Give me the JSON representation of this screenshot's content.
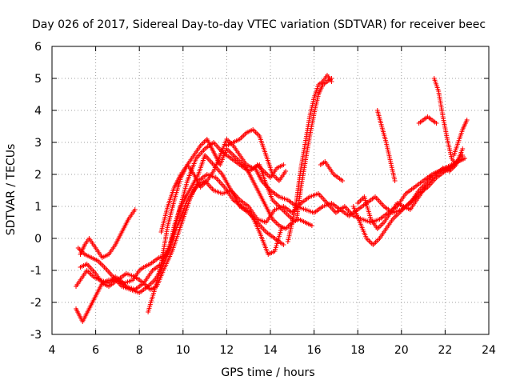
{
  "chart_data": {
    "type": "scatter",
    "title": "Day 026 of 2017, Sidereal Day-to-day VTEC variation (SDTVAR) for receiver beec",
    "xlabel": "GPS time / hours",
    "ylabel": "SDTVAR / TECUs",
    "xlim": [
      4,
      24
    ],
    "ylim": [
      -3,
      6
    ],
    "x_ticks": [
      4,
      6,
      8,
      10,
      12,
      14,
      16,
      18,
      20,
      22,
      24
    ],
    "y_ticks": [
      -3,
      -2,
      -1,
      0,
      1,
      2,
      3,
      4,
      5,
      6
    ],
    "grid": true,
    "marker": "plus",
    "color": "#ff0000",
    "series": [
      {
        "x": [
          5.1,
          5.4,
          5.6,
          5.9,
          6.2,
          6.6,
          6.9,
          7.3,
          7.7,
          8.0,
          8.2,
          8.5,
          8.9,
          9.3,
          9.6,
          9.9,
          10.3,
          10.7,
          11.0,
          11.4,
          11.8,
          12.2,
          12.6,
          13.0,
          13.4,
          13.8,
          14.2,
          14.6,
          15.0,
          15.4,
          15.8,
          16.2,
          16.6,
          17.0,
          17.4,
          17.8,
          18.2,
          18.6,
          19.0,
          19.4,
          19.8,
          20.2,
          20.6,
          21.0,
          21.4,
          21.8,
          22.2,
          22.6,
          22.9
        ],
        "y": [
          -1.5,
          -1.2,
          -1.0,
          -1.2,
          -1.3,
          -1.4,
          -1.2,
          -1.4,
          -1.3,
          -1.0,
          -0.9,
          -0.8,
          -0.6,
          -0.5,
          0.4,
          1.0,
          1.5,
          2.0,
          2.6,
          2.3,
          2.0,
          1.5,
          1.2,
          1.0,
          0.6,
          0.5,
          0.9,
          1.0,
          0.8,
          1.1,
          1.3,
          1.4,
          1.1,
          0.8,
          1.0,
          0.7,
          0.6,
          0.5,
          0.6,
          0.8,
          1.0,
          1.4,
          1.6,
          1.8,
          2.0,
          2.1,
          2.2,
          2.4,
          2.5
        ]
      },
      {
        "x": [
          5.2,
          5.5,
          5.8,
          6.1,
          6.4,
          6.8,
          7.2,
          7.6,
          8.0,
          8.4,
          8.7,
          9.0,
          9.4,
          9.8,
          10.2,
          10.6,
          11.0,
          11.4,
          11.8,
          12.2,
          12.6,
          13.0,
          13.3,
          13.6,
          14.0,
          14.4,
          14.8,
          15.2,
          15.6,
          16.0,
          16.4,
          16.8,
          17.2,
          17.6,
          18.0,
          18.4,
          18.8,
          19.2,
          19.6,
          20.0,
          20.4,
          20.8,
          21.2,
          21.6,
          22.0,
          22.4,
          22.8
        ],
        "y": [
          -0.3,
          -0.5,
          -0.6,
          -0.7,
          -0.9,
          -1.2,
          -1.5,
          -1.6,
          -1.7,
          -1.5,
          -1.3,
          -1.0,
          -0.3,
          0.8,
          1.8,
          2.5,
          2.8,
          3.0,
          2.7,
          2.5,
          2.3,
          2.1,
          2.2,
          1.8,
          1.5,
          1.3,
          1.2,
          1.0,
          0.9,
          0.8,
          1.0,
          1.1,
          0.9,
          0.7,
          0.9,
          1.1,
          1.3,
          1.0,
          0.8,
          0.9,
          1.1,
          1.4,
          1.6,
          1.9,
          2.1,
          2.3,
          2.6
        ]
      },
      {
        "x": [
          5.1,
          5.4,
          5.7,
          6.0,
          6.3,
          6.6,
          7.0,
          7.4,
          7.8,
          8.2,
          8.6,
          9.0,
          9.4,
          9.8,
          10.2,
          10.6,
          11.0,
          11.4,
          11.8,
          12.2,
          12.6,
          13.0,
          13.4,
          13.8,
          14.2,
          14.6
        ],
        "y": [
          -2.2,
          -2.6,
          -2.2,
          -1.8,
          -1.4,
          -1.3,
          -1.3,
          -1.5,
          -1.6,
          -1.4,
          -1.0,
          -0.8,
          -0.2,
          0.5,
          1.2,
          1.6,
          1.8,
          1.5,
          1.4,
          1.5,
          1.0,
          0.8,
          0.5,
          0.2,
          0.0,
          -0.2
        ]
      },
      {
        "x": [
          5.3,
          5.6,
          6.0,
          6.3,
          6.6,
          7.0,
          7.4,
          7.8,
          8.2,
          8.5,
          8.8,
          9.1,
          9.5,
          9.9,
          10.3,
          10.7,
          11.1,
          11.5,
          11.9,
          12.3,
          12.7,
          13.1,
          13.5,
          13.9,
          14.2,
          14.5
        ],
        "y": [
          -0.9,
          -0.8,
          -1.1,
          -1.4,
          -1.5,
          -1.3,
          -1.1,
          -1.2,
          -1.4,
          -1.6,
          -1.5,
          -1.0,
          -0.4,
          0.4,
          1.2,
          1.8,
          2.0,
          1.9,
          1.6,
          1.2,
          1.0,
          0.8,
          0.2,
          -0.5,
          -0.4,
          0.3
        ]
      },
      {
        "x": [
          5.3,
          5.5,
          5.7,
          6.0,
          6.3,
          6.6,
          6.9,
          7.2,
          7.5,
          7.8
        ],
        "y": [
          -0.5,
          -0.2,
          0.0,
          -0.3,
          -0.6,
          -0.5,
          -0.2,
          0.2,
          0.6,
          0.9
        ]
      },
      {
        "x": [
          8.4,
          8.7,
          9.0,
          9.3,
          9.6,
          9.9,
          10.2,
          10.5,
          10.8,
          11.1,
          11.4,
          11.7,
          12.0,
          12.3,
          12.6,
          12.9,
          13.2,
          13.5,
          13.8,
          14.1,
          14.4,
          14.7,
          15.0
        ],
        "y": [
          -2.3,
          -1.6,
          -0.8,
          0.4,
          1.2,
          1.9,
          2.3,
          2.0,
          1.6,
          1.8,
          2.1,
          2.6,
          3.1,
          2.9,
          2.6,
          2.3,
          2.2,
          2.3,
          1.7,
          1.2,
          1.0,
          0.8,
          0.6
        ]
      },
      {
        "x": [
          9.0,
          9.3,
          9.6,
          9.9,
          10.2,
          10.5,
          10.8,
          11.1,
          11.4,
          11.7,
          12.0,
          12.3,
          12.6,
          12.9,
          13.2,
          13.5,
          13.8,
          14.1,
          14.4,
          14.7,
          15.0,
          15.3,
          15.6,
          15.9
        ],
        "y": [
          0.2,
          1.0,
          1.6,
          2.0,
          2.3,
          2.6,
          2.9,
          3.1,
          2.7,
          2.3,
          2.8,
          2.6,
          2.4,
          2.2,
          1.8,
          1.4,
          1.0,
          0.6,
          0.4,
          0.3,
          0.5,
          0.6,
          0.5,
          0.4
        ]
      },
      {
        "x": [
          12.0,
          12.3,
          12.6,
          12.9,
          13.2,
          13.5,
          13.8,
          14.1,
          14.4,
          14.7
        ],
        "y": [
          2.9,
          3.0,
          3.1,
          3.3,
          3.4,
          3.2,
          2.6,
          2.0,
          1.8,
          2.1
        ]
      },
      {
        "x": [
          13.4,
          13.7,
          14.0,
          14.3,
          14.6
        ],
        "y": [
          2.3,
          2.1,
          1.9,
          2.2,
          2.3
        ]
      },
      {
        "x": [
          14.8,
          15.0,
          15.2,
          15.4,
          15.6,
          15.8,
          16.0,
          16.2,
          16.4,
          16.6,
          16.8
        ],
        "y": [
          -0.1,
          0.5,
          1.2,
          2.2,
          3.0,
          3.8,
          4.4,
          4.8,
          4.9,
          5.1,
          4.9
        ]
      },
      {
        "x": [
          15.2,
          15.4,
          15.6,
          15.8,
          16.0,
          16.2,
          16.4,
          16.6,
          16.8
        ],
        "y": [
          0.6,
          1.6,
          2.4,
          3.2,
          3.9,
          4.5,
          4.8,
          4.9,
          5.0
        ]
      },
      {
        "x": [
          16.3,
          16.5,
          16.7,
          16.9,
          17.1,
          17.3
        ],
        "y": [
          2.3,
          2.4,
          2.2,
          2.0,
          1.9,
          1.8
        ]
      },
      {
        "x": [
          18.9,
          19.1,
          19.3,
          19.5,
          19.7
        ],
        "y": [
          4.0,
          3.5,
          3.0,
          2.4,
          1.8
        ]
      },
      {
        "x": [
          20.8,
          21.0,
          21.2,
          21.4,
          21.6
        ],
        "y": [
          3.6,
          3.7,
          3.8,
          3.7,
          3.6
        ]
      },
      {
        "x": [
          21.5,
          21.7,
          21.9,
          22.1,
          22.3,
          22.5
        ],
        "y": [
          5.0,
          4.6,
          3.8,
          3.1,
          2.5,
          2.3
        ]
      },
      {
        "x": [
          22.4,
          22.6,
          22.8,
          23.0
        ],
        "y": [
          2.6,
          3.0,
          3.4,
          3.7
        ]
      },
      {
        "x": [
          17.8,
          18.1,
          18.4,
          18.7,
          19.0,
          19.3,
          19.6,
          19.9,
          20.2,
          20.5,
          20.8,
          21.1,
          21.4,
          21.7,
          22.0,
          22.3,
          22.6,
          22.9
        ],
        "y": [
          1.0,
          0.5,
          0.0,
          -0.2,
          0.0,
          0.3,
          0.6,
          0.8,
          1.0,
          1.2,
          1.5,
          1.7,
          2.0,
          2.1,
          2.2,
          2.3,
          2.4,
          2.5
        ]
      },
      {
        "x": [
          18.0,
          18.3,
          18.6,
          18.9,
          19.2,
          19.5,
          19.8,
          20.1,
          20.4,
          20.7,
          21.0,
          21.3,
          21.6,
          21.9,
          22.2,
          22.5,
          22.8
        ],
        "y": [
          1.1,
          1.3,
          0.6,
          0.3,
          0.5,
          0.8,
          1.1,
          1.0,
          0.9,
          1.2,
          1.5,
          1.8,
          2.0,
          2.2,
          2.1,
          2.3,
          2.8
        ]
      }
    ]
  }
}
